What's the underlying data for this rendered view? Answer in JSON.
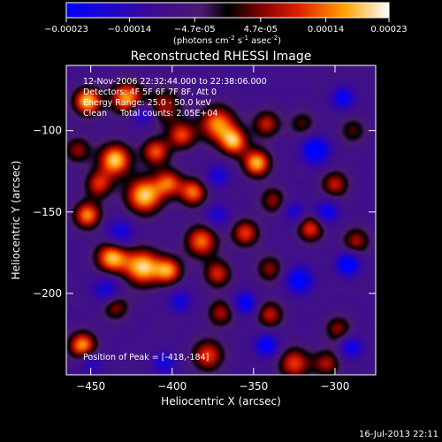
{
  "chart_data": {
    "type": "heatmap",
    "title": "Reconstructed RHESSI Image",
    "xlabel": "Heliocentric X (arcsec)",
    "ylabel": "Heliocentric Y (arcsec)",
    "xlim": [
      -465,
      -275
    ],
    "ylim": [
      -250,
      -60
    ],
    "x_ticks": [
      -450,
      -400,
      -350,
      -300
    ],
    "y_ticks": [
      -100,
      -150,
      -200
    ],
    "colorbar": {
      "range": [
        -0.00023,
        0.00023
      ],
      "tick_values": [
        -0.00023,
        -0.00014,
        -4.7e-05,
        4.7e-05,
        0.00014,
        0.00023
      ],
      "tick_labels": [
        "-0.00023",
        "-0.00014",
        "-4.7e-05",
        "4.7e-05",
        "0.00014",
        "0.00023"
      ],
      "units_label": "(photons cm",
      "units_exp1": "-2",
      "units_mid": " s",
      "units_exp2": "-1",
      "units_end": " asec",
      "units_exp3": "-2",
      "units_close": ")"
    },
    "annotations": [
      "12-Nov-2006 22:32:44.000 to 22:38:06.000",
      "Detectors: 4F 5F 6F 7F 8F, Att 0",
      "Energy Range: 25.0 - 50.0 keV",
      "Clean     Total counts: 2.05E+04"
    ],
    "peak_label": "Position of Peak = [-418,-184]",
    "peak": [
      -418,
      -184
    ],
    "blobs": [
      {
        "x": -452,
        "y": -82,
        "v": 1.0,
        "w": 6
      },
      {
        "x": -428,
        "y": -80,
        "v": 0.9,
        "w": 7
      },
      {
        "x": -405,
        "y": -85,
        "v": 0.55,
        "w": 8
      },
      {
        "x": -372,
        "y": -96,
        "v": 0.85,
        "w": 8
      },
      {
        "x": -362,
        "y": -107,
        "v": 0.85,
        "w": 6
      },
      {
        "x": -394,
        "y": -103,
        "v": 0.7,
        "w": 6
      },
      {
        "x": -342,
        "y": -96,
        "v": 0.6,
        "w": 6
      },
      {
        "x": -320,
        "y": -96,
        "v": 0.4,
        "w": 6
      },
      {
        "x": -289,
        "y": -100,
        "v": 0.4,
        "w": 6
      },
      {
        "x": -458,
        "y": -112,
        "v": 0.5,
        "w": 6
      },
      {
        "x": -435,
        "y": -118,
        "v": 1.0,
        "w": 7
      },
      {
        "x": -410,
        "y": -113,
        "v": 0.75,
        "w": 6
      },
      {
        "x": -445,
        "y": -133,
        "v": 0.65,
        "w": 6
      },
      {
        "x": -417,
        "y": -140,
        "v": 1.0,
        "w": 8
      },
      {
        "x": -402,
        "y": -132,
        "v": 0.7,
        "w": 6
      },
      {
        "x": -387,
        "y": -138,
        "v": 0.8,
        "w": 6
      },
      {
        "x": -348,
        "y": -120,
        "v": 0.95,
        "w": 6
      },
      {
        "x": -338,
        "y": -143,
        "v": 0.5,
        "w": 6
      },
      {
        "x": -300,
        "y": -133,
        "v": 0.6,
        "w": 6
      },
      {
        "x": -452,
        "y": -152,
        "v": 0.85,
        "w": 6
      },
      {
        "x": -382,
        "y": -168,
        "v": 0.8,
        "w": 7
      },
      {
        "x": -355,
        "y": -163,
        "v": 0.7,
        "w": 6
      },
      {
        "x": -315,
        "y": -160,
        "v": 0.7,
        "w": 6
      },
      {
        "x": -287,
        "y": -168,
        "v": 0.55,
        "w": 6
      },
      {
        "x": -437,
        "y": -178,
        "v": 0.95,
        "w": 7
      },
      {
        "x": -418,
        "y": -184,
        "v": 1.0,
        "w": 8
      },
      {
        "x": -402,
        "y": -186,
        "v": 0.8,
        "w": 6
      },
      {
        "x": -372,
        "y": -188,
        "v": 0.65,
        "w": 6
      },
      {
        "x": -340,
        "y": -185,
        "v": 0.5,
        "w": 6
      },
      {
        "x": -435,
        "y": -208,
        "v": 0.55,
        "w": 6
      },
      {
        "x": -370,
        "y": -212,
        "v": 0.55,
        "w": 6
      },
      {
        "x": -340,
        "y": -213,
        "v": 0.6,
        "w": 6
      },
      {
        "x": -298,
        "y": -222,
        "v": 0.5,
        "w": 6
      },
      {
        "x": -455,
        "y": -232,
        "v": 0.9,
        "w": 6
      },
      {
        "x": -378,
        "y": -238,
        "v": 0.7,
        "w": 7
      },
      {
        "x": -325,
        "y": -243,
        "v": 0.7,
        "w": 7
      },
      {
        "x": -305,
        "y": -243,
        "v": 0.55,
        "w": 6
      },
      {
        "x": -418,
        "y": -90,
        "v": -0.6,
        "w": 5
      },
      {
        "x": -432,
        "y": -163,
        "v": -0.6,
        "w": 6
      },
      {
        "x": -440,
        "y": -198,
        "v": -0.6,
        "w": 6
      },
      {
        "x": -355,
        "y": -206,
        "v": -0.75,
        "w": 5
      },
      {
        "x": -342,
        "y": -232,
        "v": -0.8,
        "w": 5
      },
      {
        "x": -322,
        "y": -192,
        "v": -0.8,
        "w": 6
      },
      {
        "x": -292,
        "y": -182,
        "v": -0.9,
        "w": 5
      },
      {
        "x": -312,
        "y": -112,
        "v": -0.9,
        "w": 6
      },
      {
        "x": -305,
        "y": -150,
        "v": -0.7,
        "w": 5
      },
      {
        "x": -295,
        "y": -80,
        "v": -0.7,
        "w": 5
      },
      {
        "x": -372,
        "y": -128,
        "v": -0.55,
        "w": 5
      },
      {
        "x": -372,
        "y": -152,
        "v": -0.5,
        "w": 5
      },
      {
        "x": -395,
        "y": -205,
        "v": -0.55,
        "w": 5
      },
      {
        "x": -450,
        "y": -243,
        "v": -0.45,
        "w": 5
      },
      {
        "x": -405,
        "y": -243,
        "v": -0.55,
        "w": 5
      },
      {
        "x": -290,
        "y": -233,
        "v": -0.65,
        "w": 5
      },
      {
        "x": -325,
        "y": -150,
        "v": -0.5,
        "w": 5
      }
    ]
  },
  "footer_timestamp": "16-Jul-2013 22:11"
}
